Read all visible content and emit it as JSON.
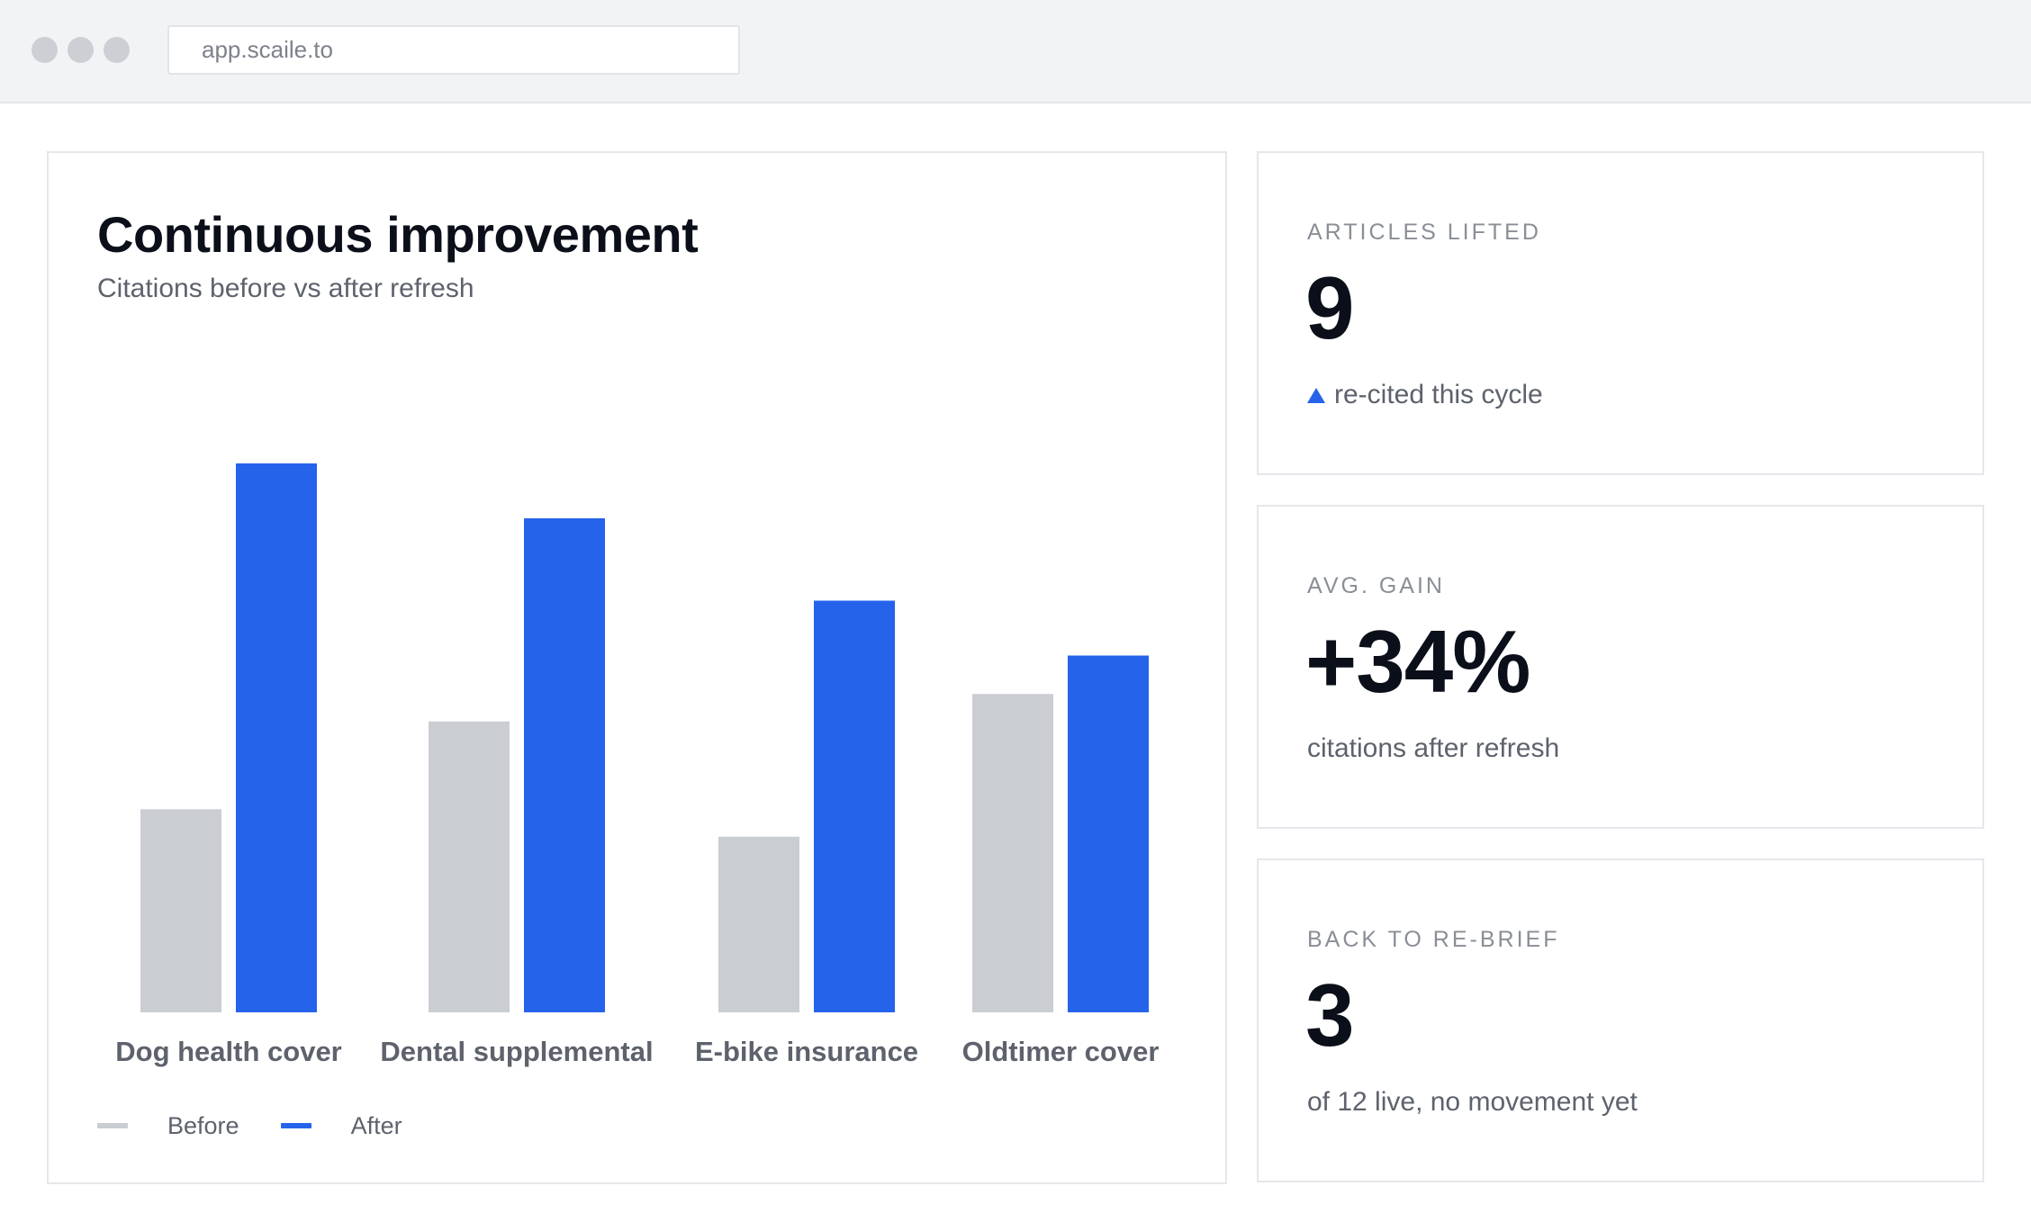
{
  "browser": {
    "url": "app.scaile.to"
  },
  "chart_panel": {
    "title": "Continuous improvement",
    "subtitle": "Citations before vs after refresh"
  },
  "chart_data": {
    "type": "bar",
    "title": "Continuous improvement",
    "subtitle": "Citations before vs after refresh",
    "categories": [
      "Dog health cover",
      "Dental supplemental",
      "E-bike insurance",
      "Oldtimer cover"
    ],
    "series": [
      {
        "name": "Before",
        "color": "#cacdd2",
        "values": [
          37,
          53,
          32,
          58
        ]
      },
      {
        "name": "After",
        "color": "#2563eb",
        "values": [
          100,
          90,
          75,
          65
        ]
      }
    ],
    "ylim": [
      0,
      100
    ],
    "y_axis_visible": false,
    "grid": false,
    "legend_position": "bottom-left"
  },
  "legend": [
    {
      "label": "Before",
      "color": "#cacdd2"
    },
    {
      "label": "After",
      "color": "#2563eb"
    }
  ],
  "stats": [
    {
      "label": "ARTICLES LIFTED",
      "value": "9",
      "sub": "re-cited this cycle",
      "trend_icon": "triangle-up-icon",
      "trend_color": "#2563eb"
    },
    {
      "label": "AVG. GAIN",
      "value": "+34%",
      "sub": "citations after refresh"
    },
    {
      "label": "BACK TO RE-BRIEF",
      "value": "3",
      "sub": "of 12 live, no movement yet"
    }
  ]
}
